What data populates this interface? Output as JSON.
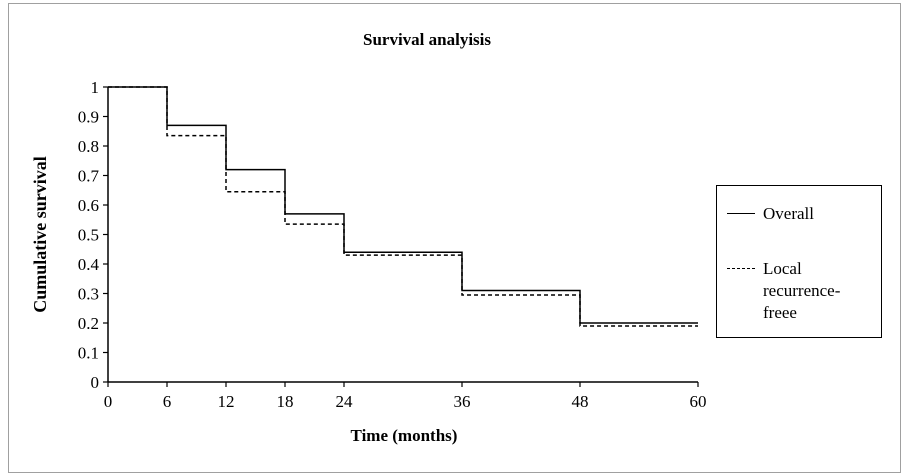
{
  "chart_data": {
    "type": "line",
    "title": "Survival analyisis",
    "xlabel": "Time (months)",
    "ylabel": "Cumulative survival",
    "xlim": [
      0,
      60
    ],
    "ylim": [
      0,
      1
    ],
    "x_ticks": [
      "0",
      "6",
      "12",
      "18",
      "24",
      "36",
      "48",
      "60"
    ],
    "y_ticks": [
      "0",
      "0.1",
      "0.2",
      "0.3",
      "0.4",
      "0.5",
      "0.6",
      "0.7",
      "0.8",
      "0.9",
      "1"
    ],
    "legend_position": "right",
    "series": [
      {
        "name": "Overall",
        "style": "solid",
        "color": "#000000",
        "x": [
          0,
          6,
          12,
          18,
          24,
          36,
          48,
          60
        ],
        "values": [
          1.0,
          0.87,
          0.72,
          0.57,
          0.44,
          0.31,
          0.2,
          0.2
        ]
      },
      {
        "name": "Local recurrence-freee",
        "style": "dashed",
        "color": "#000000",
        "x": [
          0,
          6,
          12,
          18,
          24,
          36,
          48,
          60
        ],
        "values": [
          1.0,
          0.835,
          0.645,
          0.535,
          0.43,
          0.295,
          0.19,
          0.19
        ]
      }
    ]
  },
  "legend": {
    "items": [
      "Overall",
      "Local recurrence-freee"
    ]
  }
}
